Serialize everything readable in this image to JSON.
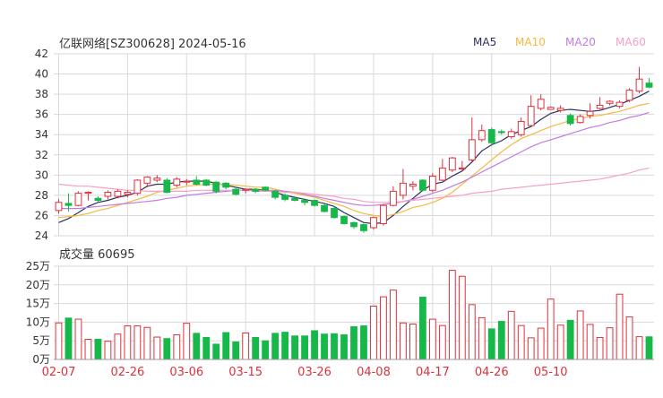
{
  "title": "亿联网络[SZ300628] 2024-05-16",
  "legend": [
    {
      "label": "MA5",
      "color": "#2b2f5c"
    },
    {
      "label": "MA10",
      "color": "#f5b942"
    },
    {
      "label": "MA20",
      "color": "#c07ce0"
    },
    {
      "label": "MA60",
      "color": "#f5a0c8"
    }
  ],
  "colors": {
    "up": "#e0303a",
    "down": "#16b84a",
    "grid": "#d9d9d9",
    "axis": "#333333",
    "date": "#e0303a"
  },
  "volume_title": "成交量 60695",
  "chart_data": [
    {
      "type": "candlestick",
      "title": "亿联网络[SZ300628] 2024-05-16",
      "ylim": [
        24,
        42
      ],
      "yticks": [
        "24",
        "26",
        "28",
        "30",
        "32",
        "34",
        "36",
        "38",
        "40",
        "42"
      ],
      "xticks": [
        "02-07",
        "02-26",
        "03-06",
        "03-15",
        "03-26",
        "04-08",
        "04-17",
        "04-26",
        "05-10"
      ],
      "xtick_index": [
        0,
        7,
        13,
        19,
        26,
        32,
        38,
        44,
        50
      ],
      "grid": true,
      "legend_position": "top-right",
      "dates": [
        "02-07",
        "02-08",
        "02-19",
        "02-20",
        "02-21",
        "02-22",
        "02-23",
        "02-26",
        "02-27",
        "02-28",
        "02-29",
        "03-01",
        "03-04",
        "03-05",
        "03-06",
        "03-07",
        "03-08",
        "03-11",
        "03-12",
        "03-13",
        "03-14",
        "03-15",
        "03-18",
        "03-19",
        "03-20",
        "03-21",
        "03-22",
        "03-25",
        "03-26",
        "03-27",
        "03-28",
        "03-29",
        "04-01",
        "04-02",
        "04-03",
        "04-08",
        "04-09",
        "04-10",
        "04-11",
        "04-12",
        "04-15",
        "04-16",
        "04-17",
        "04-18",
        "04-19",
        "04-22",
        "04-23",
        "04-24",
        "04-25",
        "04-26",
        "04-29",
        "04-30",
        "05-06",
        "05-07",
        "05-08",
        "05-09",
        "05-10",
        "05-13",
        "05-14",
        "05-15",
        "05-16"
      ],
      "open": [
        26.5,
        27.2,
        27.0,
        28.2,
        27.7,
        27.9,
        27.9,
        28.1,
        28.2,
        29.2,
        29.5,
        29.5,
        29.0,
        29.3,
        29.5,
        29.5,
        29.3,
        29.2,
        28.6,
        28.5,
        28.6,
        28.8,
        28.4,
        28.0,
        27.7,
        27.5,
        27.5,
        27.0,
        26.7,
        25.9,
        25.3,
        25.1,
        24.8,
        25.2,
        27.0,
        28.0,
        28.9,
        29.5,
        28.5,
        29.5,
        30.5,
        30.6,
        31.5,
        33.5,
        34.5,
        34.3,
        33.8,
        34.0,
        34.9,
        36.6,
        36.5,
        36.4,
        35.9,
        35.2,
        35.9,
        36.6,
        37.1,
        36.8,
        37.4,
        38.3,
        39.1
      ],
      "close": [
        27.3,
        27.0,
        28.2,
        28.3,
        27.5,
        28.3,
        28.4,
        28.3,
        29.5,
        29.8,
        29.7,
        28.3,
        29.6,
        29.4,
        29.1,
        29.0,
        28.4,
        28.8,
        28.1,
        28.6,
        28.4,
        28.5,
        27.8,
        27.6,
        27.5,
        27.3,
        27.0,
        26.4,
        25.8,
        25.2,
        24.9,
        24.5,
        25.8,
        27.0,
        28.4,
        29.2,
        29.1,
        28.5,
        29.9,
        30.7,
        31.7,
        30.7,
        33.5,
        34.4,
        33.2,
        34.2,
        34.3,
        35.3,
        36.8,
        37.5,
        36.7,
        36.6,
        35.1,
        35.8,
        36.3,
        36.9,
        37.3,
        37.2,
        38.4,
        39.5,
        38.7
      ],
      "high": [
        27.6,
        28.2,
        28.4,
        28.4,
        27.9,
        28.5,
        28.6,
        28.5,
        29.6,
        29.9,
        30.0,
        29.7,
        29.8,
        29.6,
        29.9,
        29.6,
        29.4,
        29.3,
        28.8,
        28.7,
        28.7,
        28.9,
        28.5,
        28.2,
        27.8,
        27.7,
        27.6,
        27.1,
        26.9,
        26.0,
        25.4,
        25.2,
        25.9,
        27.1,
        28.9,
        30.6,
        29.4,
        29.6,
        30.2,
        31.6,
        31.8,
        31.4,
        35.7,
        35.0,
        34.7,
        34.5,
        34.6,
        35.7,
        37.9,
        38.0,
        36.8,
        36.9,
        36.1,
        36.0,
        37.1,
        37.7,
        37.4,
        37.4,
        38.6,
        40.7,
        39.6
      ],
      "low": [
        26.2,
        26.4,
        26.9,
        27.5,
        27.3,
        27.6,
        27.7,
        27.8,
        28.0,
        28.8,
        29.3,
        28.2,
        28.8,
        29.0,
        29.0,
        28.9,
        28.2,
        28.6,
        28.0,
        28.2,
        28.2,
        28.4,
        27.6,
        27.4,
        27.4,
        27.0,
        26.9,
        26.3,
        25.7,
        25.1,
        24.7,
        24.3,
        24.6,
        25.0,
        26.9,
        27.6,
        28.5,
        28.4,
        28.3,
        29.4,
        30.3,
        30.5,
        31.3,
        33.3,
        33.0,
        34.0,
        33.6,
        33.8,
        34.8,
        36.4,
        36.5,
        36.2,
        34.9,
        35.1,
        35.6,
        36.5,
        36.9,
        36.6,
        37.2,
        38.1,
        38.6
      ],
      "series": [
        {
          "name": "MA5",
          "values": [
            25.3,
            25.7,
            26.3,
            26.9,
            27.3,
            27.5,
            27.8,
            28.0,
            28.3,
            28.9,
            29.1,
            29.1,
            29.3,
            29.4,
            29.4,
            29.4,
            29.2,
            29.0,
            28.8,
            28.6,
            28.6,
            28.5,
            28.3,
            28.0,
            27.8,
            27.6,
            27.4,
            27.2,
            26.9,
            26.3,
            25.8,
            25.3,
            25.2,
            25.3,
            26.0,
            26.9,
            27.7,
            28.5,
            29.1,
            29.3,
            29.9,
            30.4,
            31.3,
            32.4,
            33.0,
            33.4,
            34.0,
            34.4,
            34.8,
            35.5,
            36.1,
            36.4,
            36.5,
            36.4,
            36.3,
            36.4,
            36.7,
            37.0,
            37.4,
            37.8,
            38.3
          ]
        },
        {
          "name": "MA10",
          "values": [
            25.8,
            25.9,
            26.0,
            26.2,
            26.5,
            26.7,
            27.0,
            27.3,
            27.6,
            27.9,
            28.3,
            28.5,
            28.7,
            28.9,
            29.0,
            29.1,
            29.1,
            29.1,
            29.0,
            28.9,
            28.8,
            28.8,
            28.6,
            28.4,
            28.2,
            28.0,
            27.8,
            27.5,
            27.2,
            26.9,
            26.5,
            26.2,
            26.0,
            25.9,
            26.1,
            26.4,
            26.8,
            27.0,
            27.3,
            27.7,
            28.3,
            29.1,
            29.9,
            30.7,
            31.5,
            32.3,
            33.0,
            33.6,
            34.0,
            34.4,
            34.8,
            35.1,
            35.4,
            35.6,
            35.8,
            35.9,
            36.1,
            36.3,
            36.6,
            36.9,
            37.1
          ]
        },
        {
          "name": "MA20",
          "values": [
            26.7,
            26.7,
            26.7,
            26.8,
            26.9,
            27.0,
            27.1,
            27.2,
            27.3,
            27.4,
            27.5,
            27.7,
            27.8,
            28.0,
            28.1,
            28.2,
            28.3,
            28.4,
            28.5,
            28.5,
            28.5,
            28.5,
            28.5,
            28.4,
            28.3,
            28.1,
            27.9,
            27.7,
            27.5,
            27.3,
            27.1,
            27.0,
            27.0,
            27.1,
            27.2,
            27.4,
            27.6,
            27.9,
            28.2,
            28.5,
            28.9,
            29.3,
            29.8,
            30.3,
            30.8,
            31.3,
            31.8,
            32.3,
            32.8,
            33.2,
            33.5,
            33.8,
            34.1,
            34.4,
            34.7,
            34.9,
            35.2,
            35.4,
            35.7,
            35.9,
            36.2
          ]
        },
        {
          "name": "MA60",
          "values": [
            29.1,
            29.0,
            28.9,
            28.9,
            28.8,
            28.7,
            28.6,
            28.5,
            28.5,
            28.4,
            28.4,
            28.4,
            28.4,
            28.4,
            28.5,
            28.5,
            28.5,
            28.5,
            28.5,
            28.5,
            28.4,
            28.4,
            28.4,
            28.3,
            28.3,
            28.2,
            28.1,
            28.0,
            27.9,
            27.7,
            27.6,
            27.4,
            27.3,
            27.3,
            27.3,
            27.4,
            27.5,
            27.6,
            27.7,
            27.8,
            27.9,
            28.0,
            28.2,
            28.3,
            28.4,
            28.6,
            28.7,
            28.8,
            28.9,
            29.0,
            29.1,
            29.2,
            29.3,
            29.4,
            29.5,
            29.6,
            29.8,
            30.0,
            30.2,
            30.5,
            30.7
          ]
        }
      ]
    },
    {
      "type": "bar",
      "title": "成交量 60695",
      "ylim": [
        0,
        250000
      ],
      "yticks": [
        "0万",
        "5万",
        "10万",
        "15万",
        "20万",
        "25万"
      ],
      "values": [
        98000,
        111000,
        108000,
        54000,
        54000,
        49000,
        68000,
        90000,
        90000,
        86000,
        60000,
        56000,
        66000,
        97000,
        70000,
        59000,
        41000,
        72000,
        47000,
        71000,
        59000,
        50000,
        70000,
        73000,
        63000,
        63000,
        77000,
        68000,
        69000,
        66000,
        88000,
        90000,
        143000,
        168000,
        186000,
        98000,
        95000,
        167000,
        108000,
        91000,
        239000,
        223000,
        147000,
        112000,
        82000,
        102000,
        129000,
        91000,
        58000,
        84000,
        162000,
        92000,
        105000,
        130000,
        94000,
        59000,
        85000,
        175000,
        114000,
        61000,
        60695
      ]
    }
  ]
}
